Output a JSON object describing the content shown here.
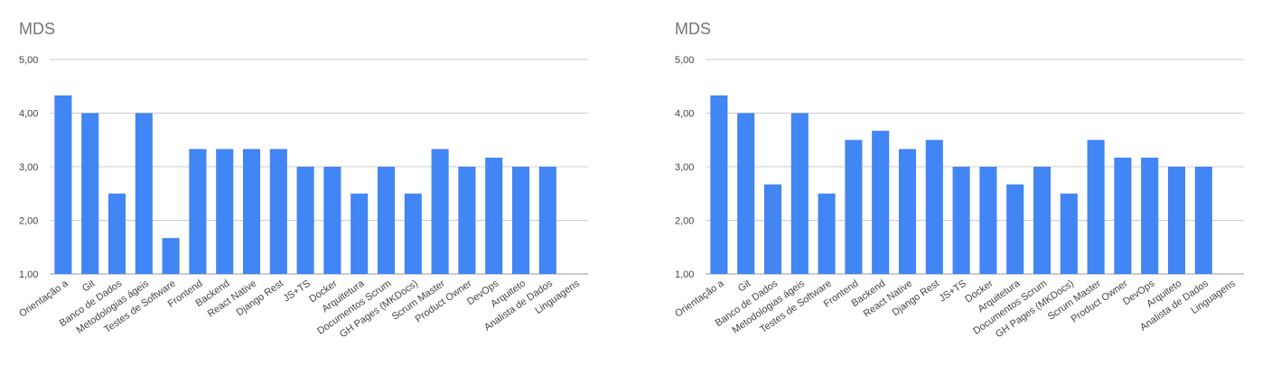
{
  "chart_data": [
    {
      "type": "bar",
      "title": "MDS",
      "xlabel": "",
      "ylabel": "",
      "ylim": [
        1,
        5
      ],
      "yticks": [
        "1,00",
        "2,00",
        "3,00",
        "4,00",
        "5,00"
      ],
      "grid": true,
      "bar_color": "#4285f4",
      "categories": [
        "Orientação a",
        "Git",
        "Banco de Dados",
        "Metodologias ágeis",
        "Testes de Software",
        "Frontend",
        "Backend",
        "React Native",
        "Django Rest",
        "JS+TS",
        "Docker",
        "Arquitetura",
        "Documentos Scrum",
        "GH Pages (MKDocs)",
        "Scrum Master",
        "Product Owner",
        "DevOps",
        "Arquiteto",
        "Analista de Dados",
        "Linguagens"
      ],
      "values": [
        4.33,
        4.0,
        2.5,
        4.0,
        1.67,
        3.33,
        3.33,
        3.33,
        3.33,
        3.0,
        3.0,
        2.5,
        3.0,
        2.5,
        3.33,
        3.0,
        3.17,
        3.0,
        3.0,
        null
      ]
    },
    {
      "type": "bar",
      "title": "MDS",
      "xlabel": "",
      "ylabel": "",
      "ylim": [
        1,
        5
      ],
      "yticks": [
        "1,00",
        "2,00",
        "3,00",
        "4,00",
        "5,00"
      ],
      "grid": true,
      "bar_color": "#4285f4",
      "categories": [
        "Orientação a",
        "Git",
        "Banco de Dados",
        "Metodologias ágeis",
        "Testes de Software",
        "Frontend",
        "Backend",
        "React Native",
        "Django Rest",
        "JS+TS",
        "Docker",
        "Arquitetura",
        "Documentos Scrum",
        "GH Pages (MKDocs)",
        "Scrum Master",
        "Product Owner",
        "DevOps",
        "Arquiteto",
        "Analista de Dados",
        "Linguagens"
      ],
      "values": [
        4.33,
        4.0,
        2.67,
        4.0,
        2.5,
        3.5,
        3.67,
        3.33,
        3.5,
        3.0,
        3.0,
        2.67,
        3.0,
        2.5,
        3.5,
        3.17,
        3.17,
        3.0,
        3.0,
        null
      ]
    }
  ]
}
